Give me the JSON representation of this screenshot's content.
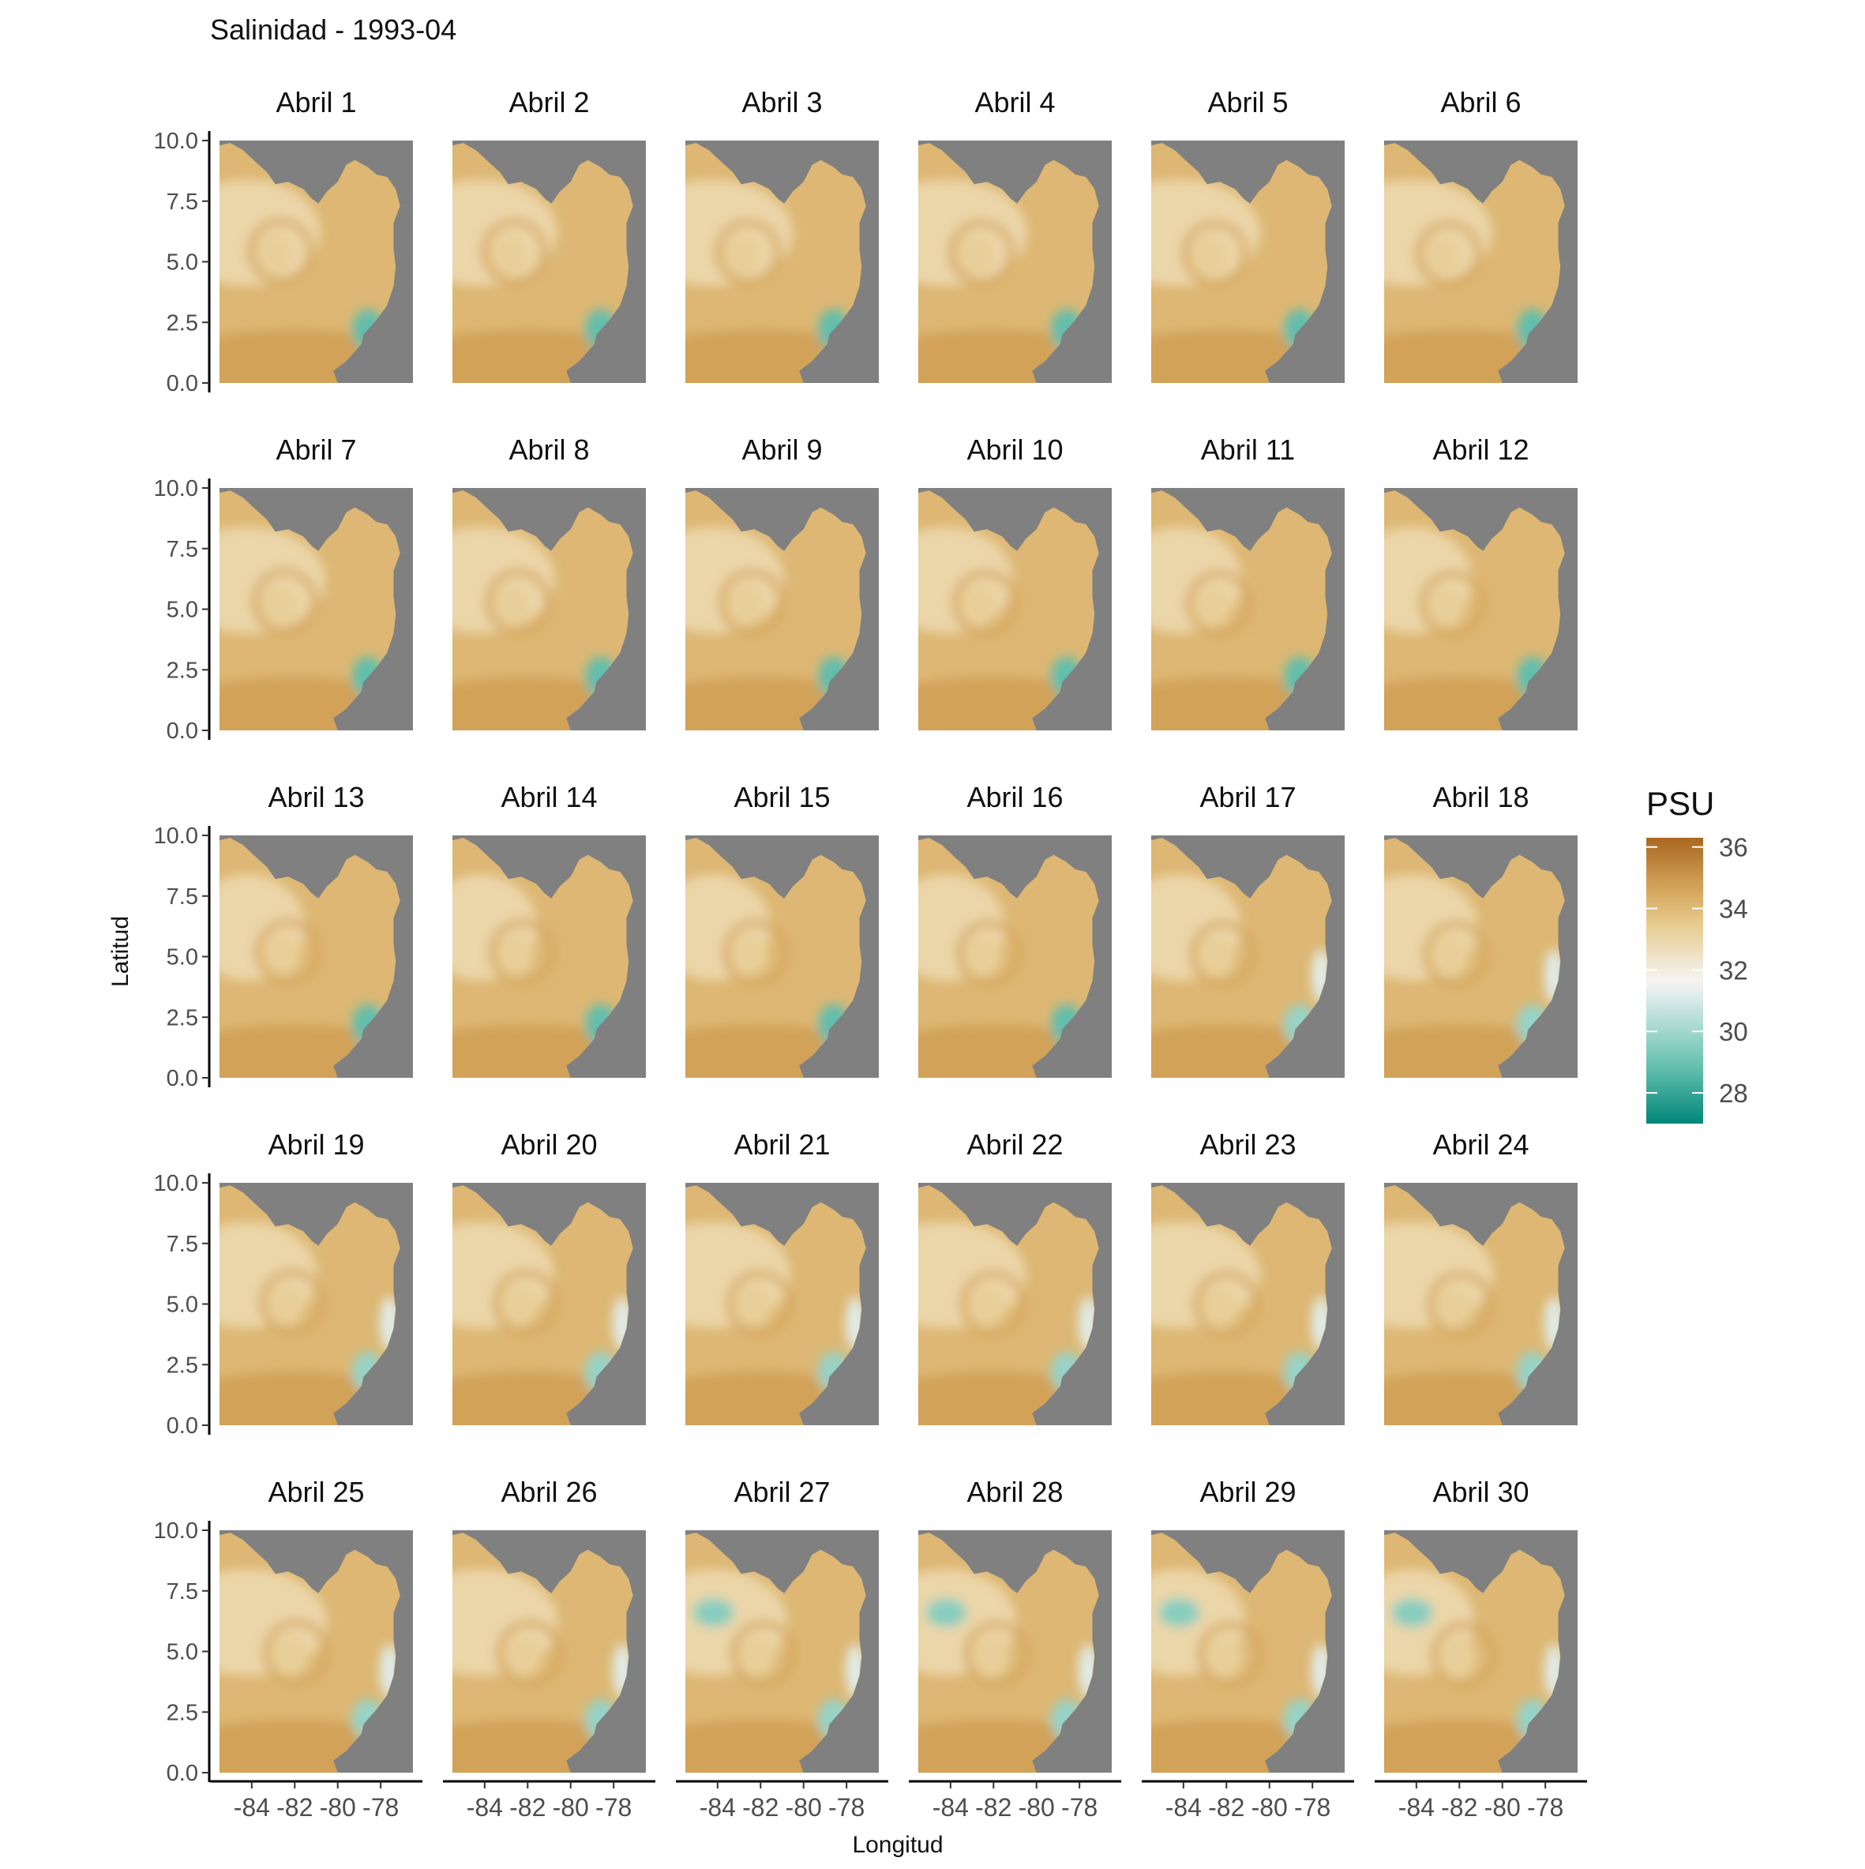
{
  "chart_data": {
    "type": "heatmap",
    "title": "Salinidad - 1993-04",
    "xlabel": "Longitud",
    "ylabel": "Latitud",
    "xlim": [
      -85.5,
      -76.5
    ],
    "ylim": [
      0,
      10
    ],
    "x_ticks": [
      -84,
      -82,
      -80,
      -78
    ],
    "x_tick_labels": [
      "-84",
      "-82",
      "-80",
      "-78"
    ],
    "y_ticks": [
      0,
      2.5,
      5,
      7.5,
      10
    ],
    "y_tick_labels": [
      "0.0",
      "2.5",
      "5.0",
      "7.5",
      "10.0"
    ],
    "facet_rows": 5,
    "facet_cols": 6,
    "facets": [
      "Abril 1",
      "Abril 2",
      "Abril 3",
      "Abril 4",
      "Abril 5",
      "Abril 6",
      "Abril 7",
      "Abril 8",
      "Abril 9",
      "Abril 10",
      "Abril 11",
      "Abril 12",
      "Abril 13",
      "Abril 14",
      "Abril 15",
      "Abril 16",
      "Abril 17",
      "Abril 18",
      "Abril 19",
      "Abril 20",
      "Abril 21",
      "Abril 22",
      "Abril 23",
      "Abril 24",
      "Abril 25",
      "Abril 26",
      "Abril 27",
      "Abril 28",
      "Abril 29",
      "Abril 30"
    ],
    "legend": {
      "title": "PSU",
      "position": "right",
      "range": [
        27,
        36.3
      ],
      "ticks": [
        36,
        34,
        32,
        30,
        28
      ],
      "tick_labels": [
        "36",
        "34",
        "32",
        "30",
        "28"
      ],
      "colors": [
        "#01877a",
        "#6cc4b3",
        "#f5f5f5",
        "#e7cb8e",
        "#a9661f"
      ]
    },
    "land_color": "#808080",
    "freshwater_patch": {
      "days_visible": [
        "Abril 27",
        "Abril 28",
        "Abril 29",
        "Abril 30"
      ],
      "approx_lon": -84.2,
      "approx_lat": 6.6,
      "approx_psu": 29.5
    },
    "coastal_low_salinity": {
      "approx_lon": -78.6,
      "approx_lat": 2.2,
      "approx_psu": 28.5
    }
  }
}
